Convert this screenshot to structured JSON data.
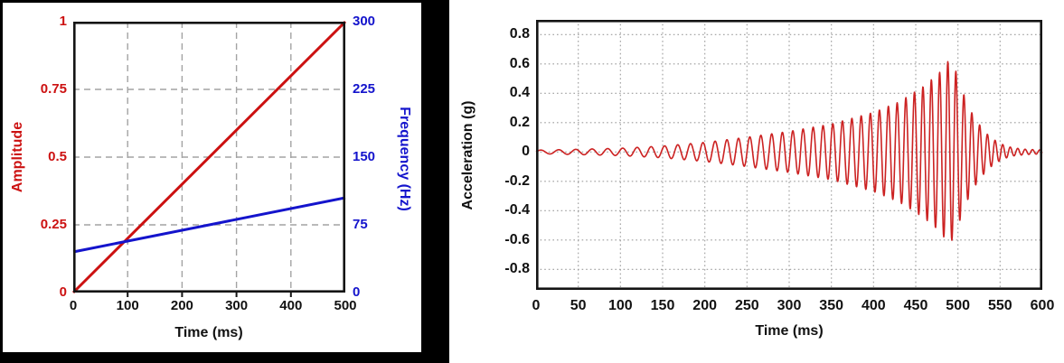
{
  "chart_data": [
    {
      "id": "amplitude-frequency-plot",
      "type": "line",
      "title": "",
      "xlabel": "Time (ms)",
      "xlim": [
        0,
        500
      ],
      "x_ticks": [
        0,
        100,
        200,
        300,
        400,
        500
      ],
      "grid": "dashed",
      "grid_color": "#a3a3a3",
      "frame_color": "#141414",
      "axes": {
        "left": {
          "label": "Amplitude",
          "color": "#cc1111",
          "lim": [
            0,
            1
          ],
          "ticks": [
            0,
            0.25,
            0.5,
            0.75,
            1
          ]
        },
        "right": {
          "label": "Frequency (Hz)",
          "color": "#1414cc",
          "lim": [
            0,
            300
          ],
          "ticks": [
            0,
            75,
            150,
            225,
            300
          ]
        }
      },
      "series": [
        {
          "name": "Amplitude",
          "axis": "left",
          "color": "#cc1111",
          "x": [
            0,
            500
          ],
          "y": [
            0,
            1
          ]
        },
        {
          "name": "Frequency (Hz)",
          "axis": "right",
          "color": "#1414cc",
          "x": [
            0,
            500
          ],
          "y": [
            45,
            105
          ]
        }
      ]
    },
    {
      "id": "acceleration-plot",
      "type": "line",
      "title": "",
      "xlabel": "Time (ms)",
      "ylabel": "Acceleration (g)",
      "xlim": [
        0,
        600
      ],
      "ylim": [
        -0.94,
        0.9
      ],
      "x_ticks": [
        0,
        50,
        100,
        150,
        200,
        250,
        300,
        350,
        400,
        450,
        500,
        550,
        600
      ],
      "y_ticks": [
        0.8,
        0.6,
        0.4,
        0.2,
        0,
        -0.2,
        -0.4,
        -0.6,
        -0.8
      ],
      "grid": "dotted",
      "grid_color": "#9c9c9c",
      "frame_color": "#141414",
      "series": [
        {
          "name": "Acceleration",
          "color": "#cc2222",
          "signal": {
            "kind": "linear-chirp",
            "freq_start_hz": 45,
            "freq_end_hz": 105,
            "freq_sweep_hz_per_ms": 0.12,
            "peak_amp_g": 0.6,
            "peak_time_ms": 490,
            "envelope_keypoints": {
              "t_ms": [
                0,
                50,
                100,
                150,
                200,
                250,
                300,
                350,
                400,
                430,
                460,
                478,
                490,
                497,
                505,
                515,
                525,
                535,
                545,
                555,
                565,
                580,
                600
              ],
              "amp_g": [
                0.012,
                0.018,
                0.025,
                0.04,
                0.065,
                0.1,
                0.14,
                0.19,
                0.27,
                0.34,
                0.45,
                0.54,
                0.63,
                0.56,
                0.42,
                0.28,
                0.19,
                0.12,
                0.075,
                0.045,
                0.028,
                0.018,
                0.013
              ]
            }
          }
        }
      ]
    }
  ]
}
